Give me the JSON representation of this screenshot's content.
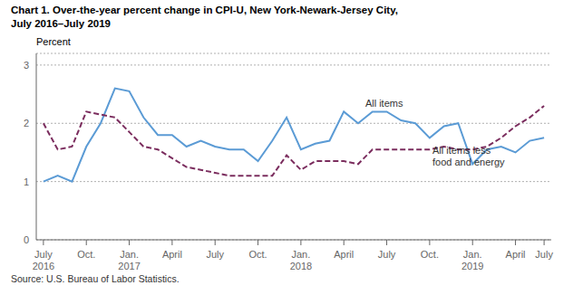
{
  "chart_data": {
    "type": "line",
    "title": "Chart 1. Over-the-year percent change in CPI-U, New York-Newark-Jersey City,\nJuly 2016–July 2019",
    "y_label": "Percent",
    "source": "Source: U.S. Bureau of Labor Statistics.",
    "categories": [
      "July\n2016",
      null,
      null,
      "Oct.",
      null,
      null,
      "Jan.\n2017",
      null,
      null,
      "April",
      null,
      null,
      "July",
      null,
      null,
      "Oct.",
      null,
      null,
      "Jan.\n2018",
      null,
      null,
      "April",
      null,
      null,
      "July",
      null,
      null,
      "Oct.",
      null,
      null,
      "Jan.\n2019",
      null,
      null,
      "April",
      null,
      "July"
    ],
    "series": [
      {
        "name": "All items",
        "color": "#5B9BD5",
        "line_style": "solid",
        "annotation": {
          "x": 22.5,
          "y": 2.28
        },
        "values": [
          1.0,
          1.1,
          1.0,
          1.6,
          2.0,
          2.6,
          2.55,
          2.1,
          1.8,
          1.8,
          1.6,
          1.7,
          1.6,
          1.55,
          1.55,
          1.35,
          1.7,
          2.1,
          1.55,
          1.65,
          1.7,
          2.2,
          2.0,
          2.2,
          2.2,
          2.05,
          2.0,
          1.75,
          1.95,
          2.0,
          1.3,
          1.55,
          1.6,
          1.5,
          1.7,
          1.75
        ]
      },
      {
        "name": "All items less\nfood and energy",
        "color": "#7B2D5E",
        "line_style": "dashed",
        "annotation": {
          "x": 27.2,
          "y": 1.28
        },
        "values": [
          2.0,
          1.55,
          1.6,
          2.2,
          2.15,
          2.1,
          1.85,
          1.6,
          1.55,
          1.4,
          1.25,
          1.2,
          1.15,
          1.1,
          1.1,
          1.1,
          1.1,
          1.45,
          1.2,
          1.35,
          1.35,
          1.35,
          1.3,
          1.55,
          1.55,
          1.55,
          1.55,
          1.55,
          1.6,
          1.55,
          1.55,
          1.6,
          1.75,
          1.95,
          2.1,
          2.3
        ]
      }
    ],
    "xlim": [
      -0.5,
      35.5
    ],
    "ylim": [
      0,
      3.2
    ],
    "yticks": [
      0,
      1,
      2,
      3
    ],
    "grid": true
  }
}
